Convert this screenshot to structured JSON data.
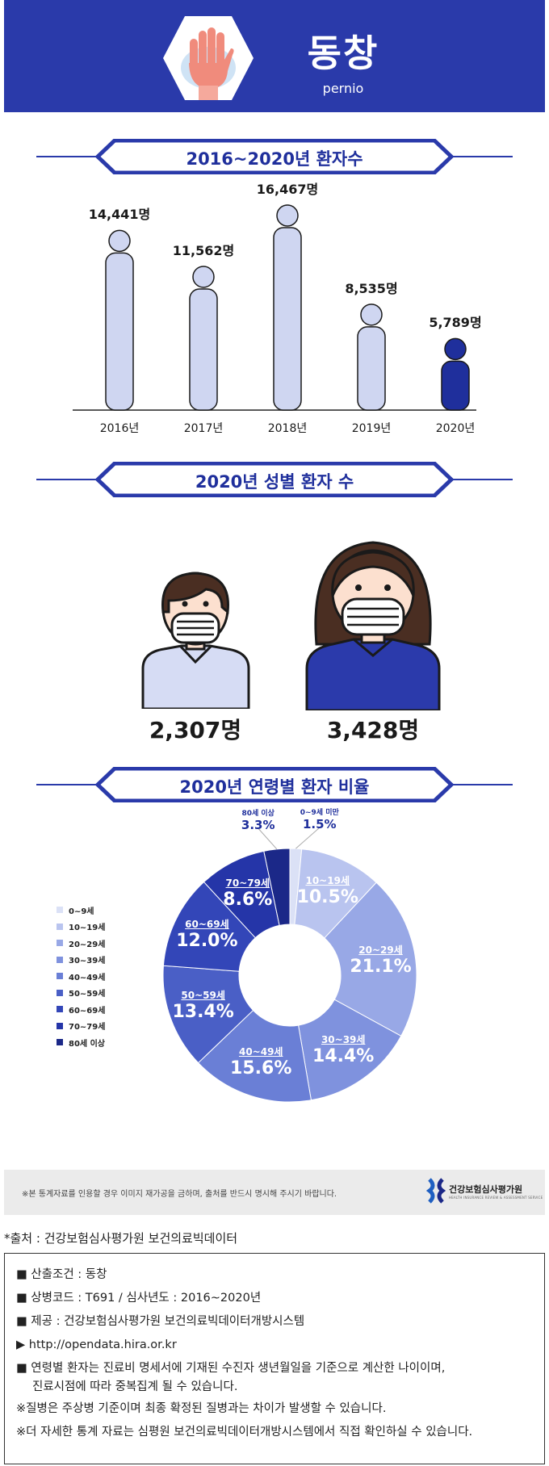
{
  "header": {
    "title": "동창",
    "subtitle": "pernio",
    "colors": {
      "bg": "#2a3aaa",
      "hand": "#f08b7c"
    }
  },
  "sections": {
    "yearly_title": "2016~2020년 환자수",
    "gender_title": "2020년 성별 환자 수",
    "age_title": "2020년 연령별 환자 비율"
  },
  "chart_data": [
    {
      "type": "bar",
      "title": "2016~2020년 환자수",
      "categories": [
        "2016년",
        "2017년",
        "2018년",
        "2019년",
        "2020년"
      ],
      "values": [
        14441,
        11562,
        16467,
        8535,
        5789
      ],
      "value_labels": [
        "14,441명",
        "11,562명",
        "16,467명",
        "8,535명",
        "5,789명"
      ],
      "colors": [
        "#cfd6f1",
        "#cfd6f1",
        "#cfd6f1",
        "#cfd6f1",
        "#1f2f9c"
      ]
    },
    {
      "type": "bar",
      "title": "2020년 성별 환자 수",
      "categories": [
        "남",
        "여"
      ],
      "values": [
        2307,
        3428
      ],
      "value_labels": [
        "2,307명",
        "3,428명"
      ],
      "colors": [
        "#d6dcf4",
        "#2b3aab"
      ]
    },
    {
      "type": "pie",
      "title": "2020년 연령별 환자 비율",
      "categories": [
        "0~9세",
        "10~19세",
        "20~29세",
        "30~39세",
        "40~49세",
        "50~59세",
        "60~69세",
        "70~79세",
        "80세 이상"
      ],
      "values": [
        1.5,
        10.5,
        21.1,
        14.4,
        15.6,
        13.4,
        12.0,
        8.6,
        3.3
      ],
      "slice_labels": [
        "0~9세 미만",
        "10~19세",
        "20~29세",
        "30~39세",
        "40~49세",
        "50~59세",
        "60~69세",
        "70~79세",
        "80세 이상"
      ],
      "pct_labels": [
        "1.5%",
        "10.5%",
        "21.1%",
        "14.4%",
        "15.6%",
        "13.4%",
        "12.0%",
        "8.6%",
        "3.3%"
      ],
      "colors": [
        "#dbe1f6",
        "#b9c4ef",
        "#98a8e6",
        "#7f92de",
        "#6a7fd6",
        "#4a5fc6",
        "#3346b8",
        "#2535a8",
        "#1b2888"
      ],
      "legend": "left"
    }
  ],
  "notice": {
    "text": "※본 통계자료를 인용할 경우 이미지 재가공을 금하며, 출처를 반드시 명시해 주시기 바랍니다.",
    "logo_name": "건강보험심사평가원",
    "logo_sub": "HEALTH INSURANCE REVIEW & ASSESSMENT SERVICE"
  },
  "source": "*출처 : 건강보험심사평가원 보건의료빅데이터",
  "info": [
    "■ 산출조건 : 동창",
    "■ 상병코드 : T691 / 심사년도 : 2016~2020년",
    "■ 제공 : 건강보험심사평가원 보건의료빅데이터개방시스템",
    "▶ http://opendata.hira.or.kr",
    "■ 연령별 환자는 진료비 명세서에 기재된 수진자 생년월일을 기준으로 계산한 나이이며,",
    "진료시점에 따라 중복집계 될 수 있습니다.",
    "※질병은 주상병 기준이며 최종 확정된 질병과는 차이가 발생할 수 있습니다.",
    "※더 자세한 통계 자료는 심평원 보건의료빅데이터개방시스템에서 직접 확인하실 수 있습니다."
  ]
}
